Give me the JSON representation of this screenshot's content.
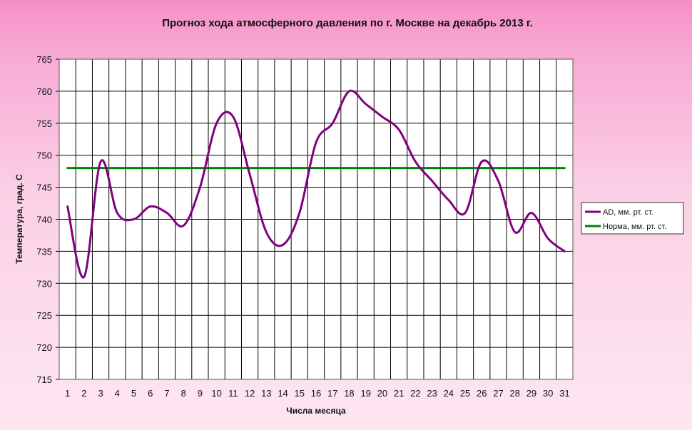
{
  "chart_data": {
    "type": "line",
    "title": "Прогноз хода атмосферного давления по г. Москве на декабрь 2013 г.",
    "xlabel": "Числа месяца",
    "ylabel": "Температура, град. С",
    "x": [
      1,
      2,
      3,
      4,
      5,
      6,
      7,
      8,
      9,
      10,
      11,
      12,
      13,
      14,
      15,
      16,
      17,
      18,
      19,
      20,
      21,
      22,
      23,
      24,
      25,
      26,
      27,
      28,
      29,
      30,
      31
    ],
    "ylim": [
      715,
      765
    ],
    "y_ticks": [
      715,
      720,
      725,
      730,
      735,
      740,
      745,
      750,
      755,
      760,
      765
    ],
    "grid": true,
    "legend_position": "right",
    "series": [
      {
        "name": "AD, мм. рт. ст.",
        "color": "#800080",
        "values": [
          742,
          731,
          749,
          741,
          740,
          742,
          741,
          739,
          745,
          755,
          756,
          747,
          738,
          736,
          741,
          752,
          755,
          760,
          758,
          756,
          754,
          749,
          746,
          743,
          741,
          749,
          746,
          738,
          741,
          737,
          735
        ]
      },
      {
        "name": "Норма, мм. рт. ст.",
        "color": "#008000",
        "values": [
          748,
          748,
          748,
          748,
          748,
          748,
          748,
          748,
          748,
          748,
          748,
          748,
          748,
          748,
          748,
          748,
          748,
          748,
          748,
          748,
          748,
          748,
          748,
          748,
          748,
          748,
          748,
          748,
          748,
          748,
          748
        ]
      }
    ]
  }
}
